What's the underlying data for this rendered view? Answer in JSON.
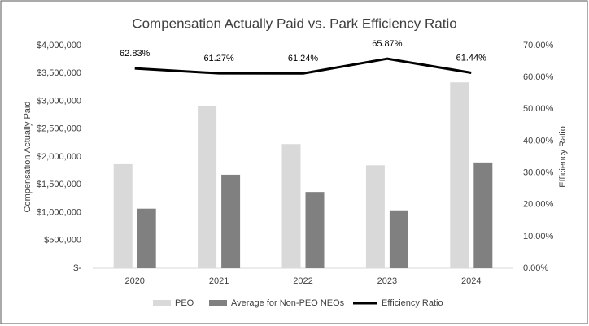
{
  "chart_data": {
    "type": "bar",
    "title": "Compensation Actually Paid vs. Park Efficiency Ratio",
    "y_label": "Compensation Actually Paid",
    "y2_label": "Efficiency Ratio",
    "categories": [
      "2020",
      "2021",
      "2022",
      "2023",
      "2024"
    ],
    "series": [
      {
        "name": "PEO",
        "color": "#d9d9d9",
        "type": "bar",
        "values": [
          1870000,
          2920000,
          2230000,
          1850000,
          3340000
        ]
      },
      {
        "name": "Average for Non-PEO NEOs",
        "color": "#808080",
        "type": "bar",
        "values": [
          1070000,
          1680000,
          1370000,
          1040000,
          1900000
        ]
      },
      {
        "name": "Efficiency Ratio",
        "color": "#000000",
        "type": "line",
        "axis": "y2",
        "values": [
          62.83,
          61.27,
          61.24,
          65.87,
          61.44
        ],
        "value_labels": [
          "62.83%",
          "61.27%",
          "61.24%",
          "65.87%",
          "61.44%"
        ]
      }
    ],
    "ylim": [
      0,
      4000000
    ],
    "yticks": [
      {
        "value": 0,
        "label": "$-"
      },
      {
        "value": 500000,
        "label": "$500,000"
      },
      {
        "value": 1000000,
        "label": "$1,000,000"
      },
      {
        "value": 1500000,
        "label": "$1,500,000"
      },
      {
        "value": 2000000,
        "label": "$2,000,000"
      },
      {
        "value": 2500000,
        "label": "$2,500,000"
      },
      {
        "value": 3000000,
        "label": "$3,000,000"
      },
      {
        "value": 3500000,
        "label": "$3,500,000"
      },
      {
        "value": 4000000,
        "label": "$4,000,000"
      }
    ],
    "y2lim": [
      0,
      70
    ],
    "y2ticks": [
      {
        "value": 0,
        "label": "0.00%"
      },
      {
        "value": 10,
        "label": "10.00%"
      },
      {
        "value": 20,
        "label": "20.00%"
      },
      {
        "value": 30,
        "label": "30.00%"
      },
      {
        "value": 40,
        "label": "40.00%"
      },
      {
        "value": 50,
        "label": "50.00%"
      },
      {
        "value": 60,
        "label": "60.00%"
      },
      {
        "value": 70,
        "label": "70.00%"
      }
    ],
    "grid": false,
    "legend": "bottom"
  }
}
